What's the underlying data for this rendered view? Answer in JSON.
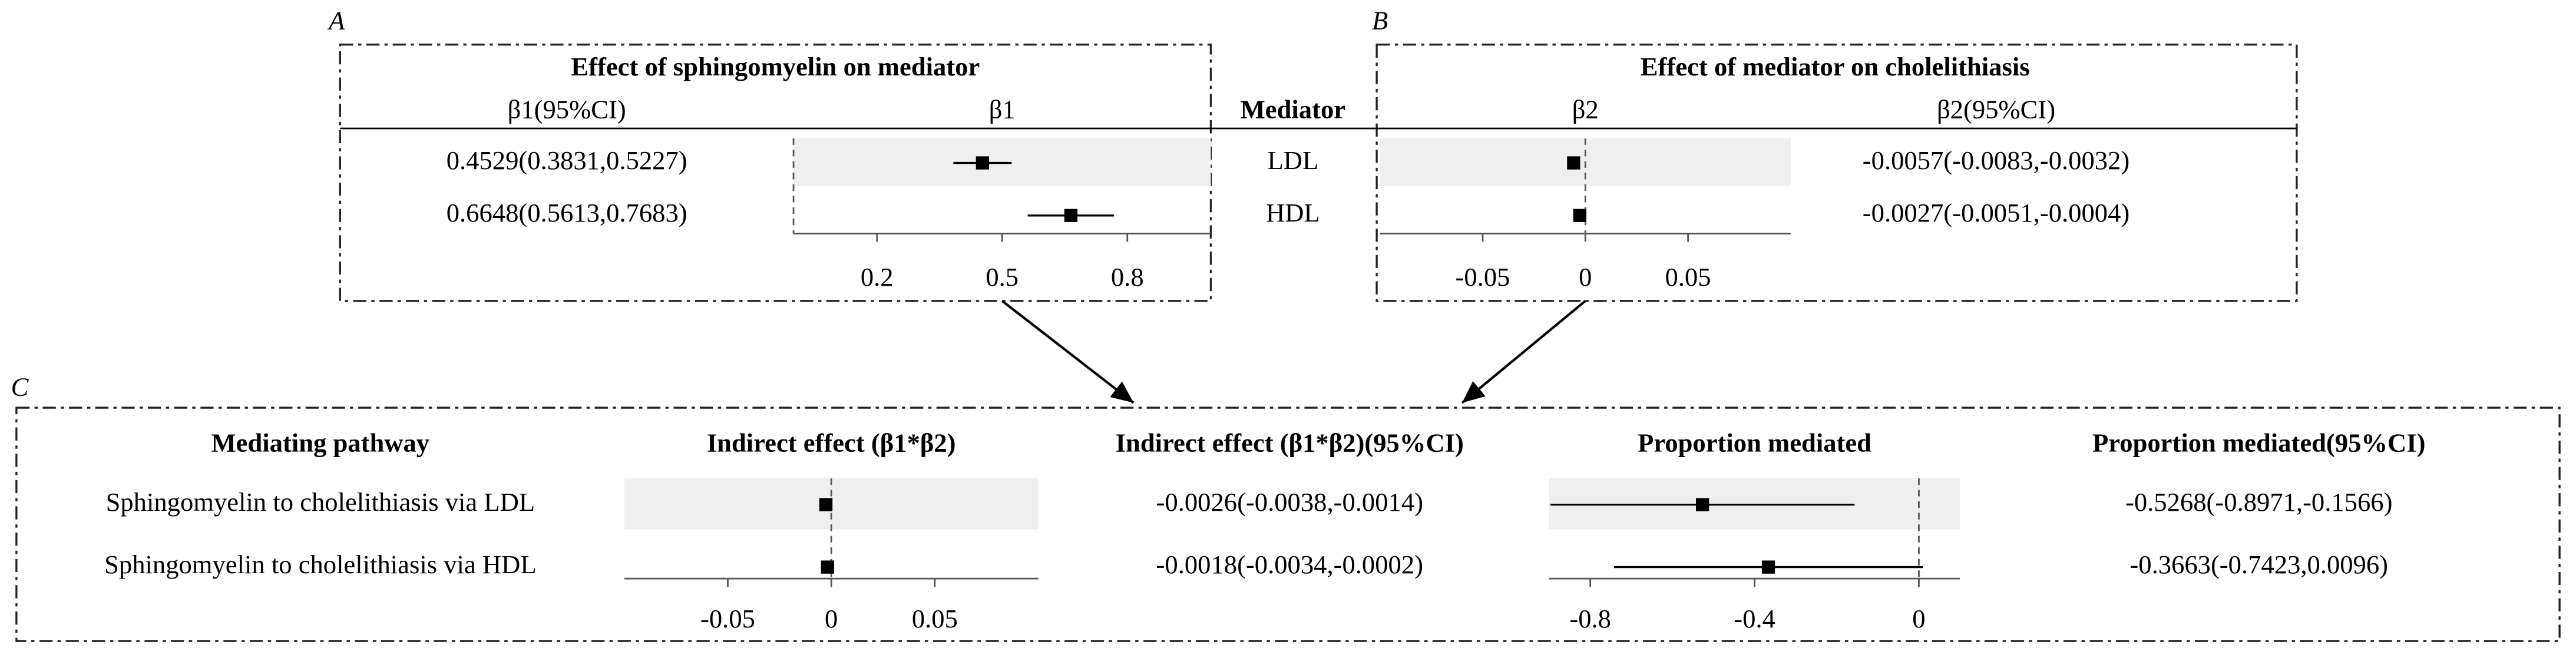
{
  "panel_labels": {
    "a": "A",
    "b": "B",
    "c": "C"
  },
  "mediator_column": {
    "header": "Mediator",
    "categories": [
      "LDL",
      "HDL"
    ]
  },
  "pathway_column": {
    "header": "Mediating pathway",
    "categories": [
      "Sphingomyelin to cholelithiasis via LDL",
      "Sphingomyelin to cholelithiasis via HDL"
    ]
  },
  "chart_data": [
    {
      "type": "forest",
      "title": "Effect of sphingomyelin on mediator",
      "x_header": "β1",
      "ci_header": "β1(95%CI)",
      "values": [
        0.4529,
        0.6648
      ],
      "lower": [
        0.3831,
        0.5613
      ],
      "upper": [
        0.5227,
        0.7683
      ],
      "ci_labels": [
        "0.4529(0.3831,0.5227)",
        "0.6648(0.5613,0.7683)"
      ],
      "xlim": [
        0,
        1
      ],
      "xticks": [
        0.2,
        0.5,
        0.8
      ],
      "reference": 0,
      "color": "#000000",
      "shade_color": "#efefef"
    },
    {
      "type": "forest",
      "title": "Effect of mediator on cholelithiasis",
      "x_header": "β2",
      "ci_header": "β2(95%CI)",
      "values": [
        -0.0057,
        -0.0027
      ],
      "lower": [
        -0.0083,
        -0.0051
      ],
      "upper": [
        -0.0032,
        -0.0004
      ],
      "ci_labels": [
        "-0.0057(-0.0083,-0.0032)",
        "-0.0027(-0.0051,-0.0004)"
      ],
      "xlim": [
        -0.1,
        0.1
      ],
      "xticks": [
        -0.05,
        0,
        0.05
      ],
      "reference": 0,
      "color": "#000000",
      "shade_color": "#efefef"
    },
    {
      "type": "forest",
      "x_header": "Indirect effect (β1*β2)",
      "ci_header": "Indirect effect (β1*β2)(95%CI)",
      "values": [
        -0.0026,
        -0.0018
      ],
      "lower": [
        -0.0038,
        -0.0034
      ],
      "upper": [
        -0.0014,
        -0.0002
      ],
      "ci_labels": [
        "-0.0026(-0.0038,-0.0014)",
        "-0.0018(-0.0034,-0.0002)"
      ],
      "xlim": [
        -0.1,
        0.1
      ],
      "xticks": [
        -0.05,
        0,
        0.05
      ],
      "reference": 0,
      "color": "#000000",
      "shade_color": "#efefef"
    },
    {
      "type": "forest",
      "x_header": "Proportion mediated",
      "ci_header": "Proportion mediated(95%CI)",
      "values": [
        -0.5268,
        -0.3663
      ],
      "lower": [
        -0.8971,
        -0.7423
      ],
      "upper": [
        -0.1566,
        0.0096
      ],
      "ci_labels": [
        "-0.5268(-0.8971,-0.1566)",
        "-0.3663(-0.7423,0.0096)"
      ],
      "xlim": [
        -0.9,
        0.1
      ],
      "xticks": [
        -0.8,
        -0.4,
        0
      ],
      "reference": 0,
      "color": "#000000",
      "shade_color": "#efefef"
    }
  ]
}
